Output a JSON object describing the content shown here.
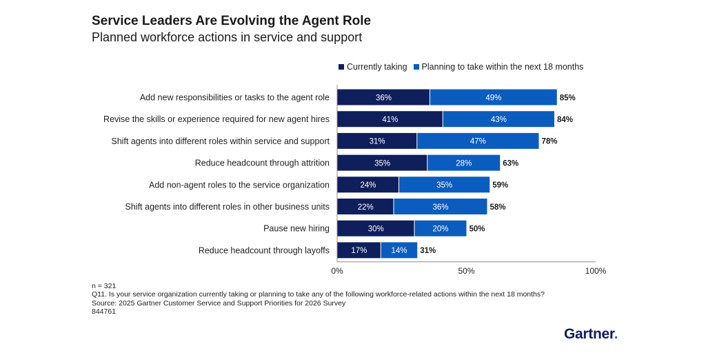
{
  "header": {
    "title": "Service Leaders Are Evolving the Agent Role",
    "subtitle": "Planned workforce actions in service and support"
  },
  "colors": {
    "currently": "#0f1f5c",
    "planning": "#0b5cbf",
    "axis": "#8c8c8c"
  },
  "chart_data": {
    "type": "bar",
    "orientation": "horizontal",
    "stacked": true,
    "title": "Service Leaders Are Evolving the Agent Role",
    "subtitle": "Planned workforce actions in service and support",
    "categories": [
      "Add new responsibilities or tasks to the agent role",
      "Revise the skills or experience required for new agent hires",
      "Shift agents into different roles within service and support",
      "Reduce headcount through attrition",
      "Add non-agent roles to the service organization",
      "Shift agents into different roles in other business units",
      "Pause new hiring",
      "Reduce headcount through layoffs"
    ],
    "series": [
      {
        "name": "Currently taking",
        "values": [
          36,
          41,
          31,
          35,
          24,
          22,
          30,
          17
        ]
      },
      {
        "name": "Planning to take within the next 18 months",
        "values": [
          49,
          43,
          47,
          28,
          35,
          36,
          20,
          14
        ]
      }
    ],
    "totals": [
      85,
      84,
      78,
      63,
      59,
      58,
      50,
      31
    ],
    "xlim": [
      0,
      100
    ],
    "xticks": [
      "0%",
      "50%",
      "100%"
    ],
    "unit": "%",
    "legend_position": "top",
    "grid": false
  },
  "footnotes": {
    "n": "n = 321",
    "question": "Q11. Is your service organization currently taking or planning to take any of the following workforce-related actions within the next 18 months?",
    "source": "Source: 2025 Gartner Customer Service and Support Priorities for 2026 Survey",
    "id": "844761"
  },
  "brand": {
    "name": "Gartner",
    "suffix": "."
  }
}
